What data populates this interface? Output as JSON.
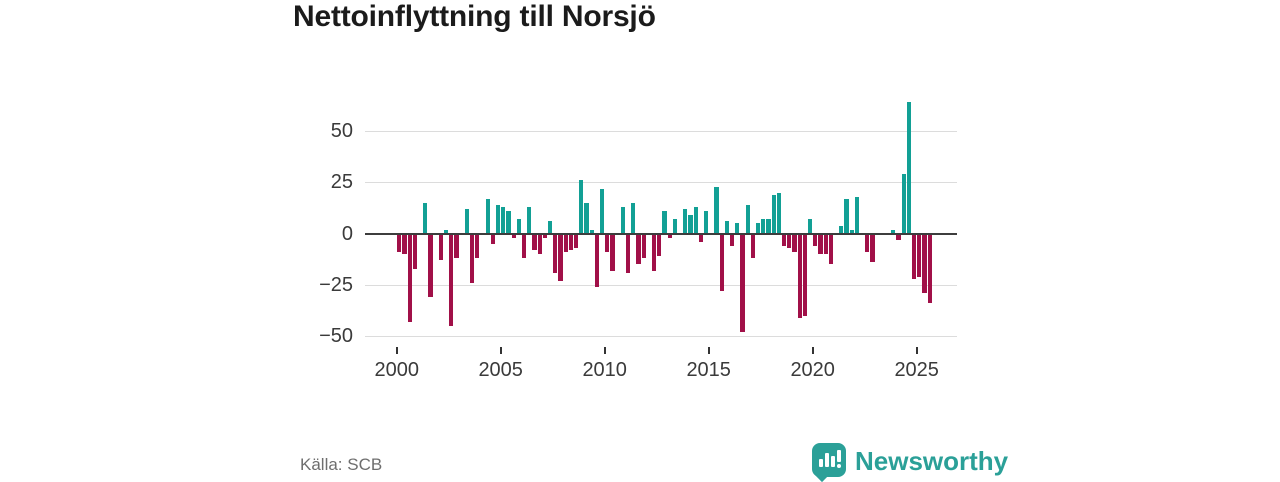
{
  "title": "Nettoinflyttning till Norsjö",
  "source": "Källa: SCB",
  "brand": {
    "name": "Newsworthy",
    "icon": "bar-chart-exclamation-bubble"
  },
  "colors": {
    "positive": "#12a095",
    "negative": "#a11048",
    "grid": "#dcdcdc",
    "zero_line": "#3d3d3d",
    "title_text": "#1b1b1b",
    "axis_text": "#3a3a3a",
    "source_text": "#6e6e6e",
    "brand_teal": "#2ba098"
  },
  "chart_data": {
    "type": "bar",
    "title": "Nettoinflyttning till Norsjö",
    "frequency": "quarterly",
    "start_year": 2000,
    "start_period": "2000-Q1",
    "end_period": "2025-Q3",
    "grid": "horizontal",
    "legend": "none",
    "xlabel": "",
    "ylabel": "",
    "ylim": [
      -50,
      70
    ],
    "y_ticks": [
      50,
      25,
      0,
      -25,
      -50
    ],
    "y_tick_labels": [
      "50",
      "25",
      "0",
      "−25",
      "−50"
    ],
    "x_ticks": [
      2000,
      2005,
      2010,
      2015,
      2020,
      2025
    ],
    "x_tick_labels": [
      "2000",
      "2005",
      "2010",
      "2015",
      "2020",
      "2025"
    ],
    "values": [
      -9,
      -10,
      -43,
      -17,
      0,
      15,
      -31,
      0,
      -13,
      2,
      -45,
      -12,
      0,
      12,
      -24,
      -12,
      0,
      17,
      -5,
      14,
      13,
      11,
      -2,
      7,
      -12,
      13,
      -8,
      -10,
      -2,
      6,
      -19,
      -23,
      -9,
      -8,
      -7,
      26,
      15,
      2,
      -26,
      22,
      -9,
      -18,
      0,
      13,
      -19,
      15,
      -15,
      -12,
      0,
      -18,
      -11,
      11,
      -2,
      7,
      0,
      12,
      9,
      13,
      -4,
      11,
      0,
      23,
      -28,
      6,
      -6,
      5,
      -48,
      14,
      -12,
      5,
      7,
      7,
      19,
      20,
      -6,
      -7,
      -9,
      -41,
      -40,
      7,
      -6,
      -10,
      -10,
      -15,
      0,
      4,
      17,
      2,
      18,
      0,
      -9,
      -14,
      0,
      0,
      0,
      2,
      -3,
      29,
      64,
      -22,
      -21,
      -29,
      -34
    ]
  }
}
